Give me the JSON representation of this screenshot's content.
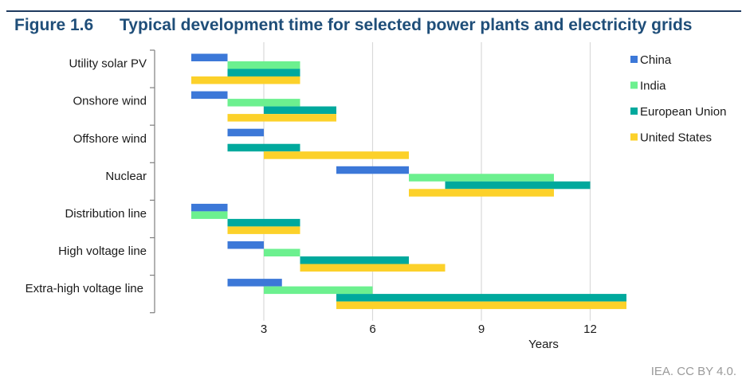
{
  "figure": {
    "number": "Figure 1.6",
    "title": "Typical development time for selected power plants and electricity grids",
    "source": "IEA. CC BY 4.0."
  },
  "chart_data": {
    "type": "bar",
    "orientation": "horizontal-range",
    "title": "Typical development time for selected power plants and electricity grids",
    "xlabel": "Years",
    "ylabel": "",
    "xlim": [
      0,
      13.5
    ],
    "xticks": [
      3,
      6,
      9,
      12
    ],
    "grid": true,
    "legend_position": "top-right",
    "categories": [
      "Utility solar PV",
      "Onshore wind",
      "Offshore wind",
      "Nuclear",
      "Distribution line",
      "High voltage line",
      "Extra-high voltage line"
    ],
    "series": [
      {
        "name": "China",
        "color": "#3c78d8",
        "ranges": [
          [
            1,
            2
          ],
          [
            1,
            2
          ],
          [
            2,
            3
          ],
          [
            5,
            7
          ],
          [
            1,
            2
          ],
          [
            2,
            3
          ],
          [
            2,
            3.5
          ]
        ]
      },
      {
        "name": "India",
        "color": "#6cf08f",
        "ranges": [
          [
            2,
            4
          ],
          [
            2,
            4
          ],
          null,
          [
            7,
            11
          ],
          [
            1,
            2
          ],
          [
            3,
            4
          ],
          [
            3,
            6
          ]
        ]
      },
      {
        "name": "European Union",
        "color": "#00a99d",
        "ranges": [
          [
            2,
            4
          ],
          [
            3,
            5
          ],
          [
            2,
            4
          ],
          [
            8,
            12
          ],
          [
            2,
            4
          ],
          [
            4,
            7
          ],
          [
            5,
            13
          ]
        ]
      },
      {
        "name": "United States",
        "color": "#fcd12a",
        "ranges": [
          [
            1,
            4
          ],
          [
            2,
            5
          ],
          [
            3,
            7
          ],
          [
            7,
            11
          ],
          [
            2,
            4
          ],
          [
            4,
            8
          ],
          [
            5,
            13
          ]
        ]
      }
    ]
  }
}
